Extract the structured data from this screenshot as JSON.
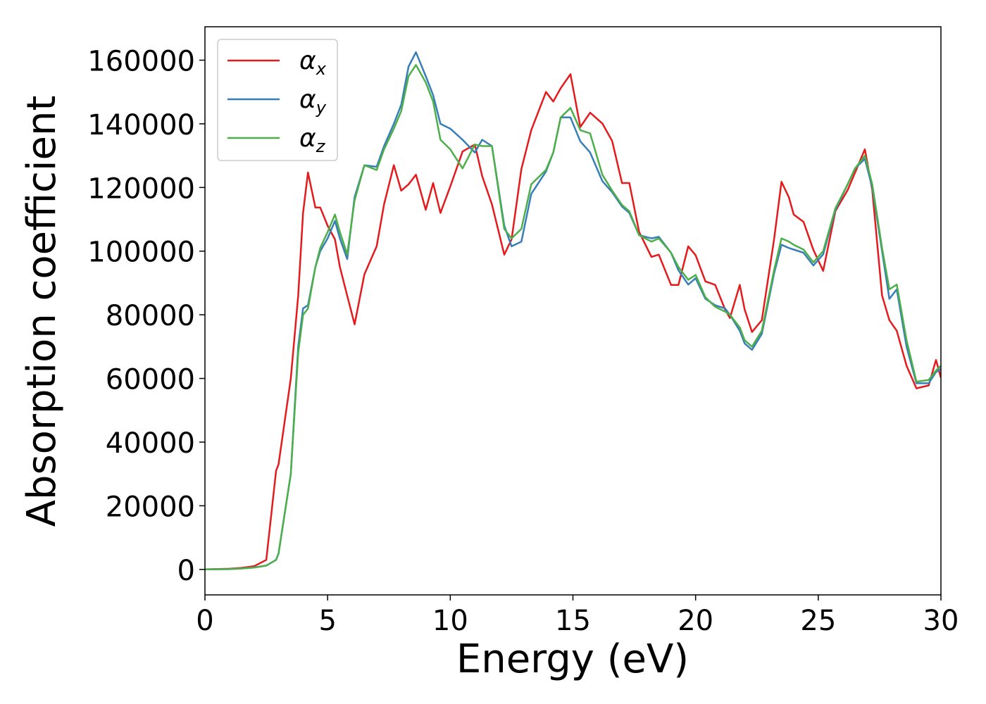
{
  "chart_data": {
    "type": "line",
    "xlabel": "Energy (eV)",
    "ylabel": "Absorption coefficient",
    "x": [
      0,
      1,
      1.5,
      2,
      2.5,
      2.9,
      3,
      3.5,
      3.8,
      4,
      4.2,
      4.5,
      4.7,
      5,
      5.3,
      5.5,
      5.8,
      6.1,
      6.5,
      7,
      7.3,
      7.7,
      8,
      8.3,
      8.6,
      9,
      9.3,
      9.6,
      10,
      10.5,
      11,
      11.3,
      11.7,
      12.2,
      12.5,
      12.9,
      13.3,
      13.9,
      14.2,
      14.5,
      14.9,
      15.3,
      15.7,
      16.2,
      16.6,
      17,
      17.3,
      17.7,
      18.2,
      18.5,
      19,
      19.3,
      19.7,
      20,
      20.4,
      20.8,
      21.2,
      21.4,
      21.8,
      22,
      22.3,
      22.7,
      23.2,
      23.5,
      23.8,
      24,
      24.4,
      24.8,
      25.2,
      25.7,
      26.2,
      26.5,
      26.9,
      27.2,
      27.6,
      27.9,
      28.2,
      28.6,
      29,
      29.5,
      29.8,
      30
    ],
    "series": [
      {
        "name": "αx",
        "color": "#e41a1c",
        "values": [
          0,
          200,
          500,
          1000,
          3000,
          31000,
          33000,
          60000,
          86000,
          112000,
          124700,
          113700,
          113700,
          108000,
          103700,
          95000,
          86000,
          77000,
          92700,
          101500,
          114700,
          127000,
          119000,
          121000,
          124000,
          113000,
          121400,
          112000,
          120300,
          131300,
          133500,
          123600,
          114700,
          98900,
          103700,
          125800,
          138000,
          150000,
          147000,
          151200,
          155600,
          139000,
          143500,
          140100,
          134600,
          121400,
          121400,
          106000,
          98200,
          98900,
          89400,
          89400,
          101500,
          98700,
          90500,
          89400,
          81700,
          79000,
          89400,
          81700,
          74600,
          78300,
          103700,
          121800,
          117000,
          111500,
          109200,
          100400,
          93800,
          112600,
          119200,
          124700,
          132000,
          119200,
          86100,
          78300,
          75000,
          64000,
          56900,
          57800,
          65800,
          60200
        ]
      },
      {
        "name": "αy",
        "color": "#377eb8",
        "values": [
          0,
          100,
          300,
          600,
          1200,
          3000,
          5000,
          30000,
          70000,
          82000,
          83000,
          95000,
          100000,
          104000,
          109500,
          104000,
          97500,
          117000,
          127000,
          126500,
          133000,
          140000,
          146000,
          158000,
          162500,
          155000,
          149000,
          140000,
          138500,
          135000,
          131000,
          135000,
          133000,
          108000,
          101500,
          103000,
          118000,
          125000,
          131000,
          142000,
          142000,
          134500,
          131000,
          122000,
          118500,
          114000,
          112000,
          105000,
          104000,
          104500,
          99500,
          94000,
          89500,
          91500,
          85000,
          83000,
          82000,
          80000,
          75000,
          71000,
          69000,
          74000,
          93000,
          102000,
          101000,
          100500,
          99500,
          95500,
          99000,
          113000,
          121000,
          126000,
          129000,
          120000,
          100000,
          85000,
          88000,
          70000,
          58500,
          58500,
          62000,
          63000
        ]
      },
      {
        "name": "αz",
        "color": "#4daf4a",
        "values": [
          0,
          100,
          300,
          600,
          1200,
          3000,
          5000,
          30000,
          68000,
          80000,
          82000,
          95000,
          101000,
          106000,
          111500,
          106000,
          99000,
          116000,
          127000,
          125500,
          132000,
          138500,
          144000,
          155000,
          158500,
          153000,
          147000,
          135000,
          132000,
          126000,
          133500,
          133000,
          133000,
          107000,
          104000,
          107000,
          121000,
          125500,
          131000,
          142000,
          145000,
          138000,
          137000,
          124000,
          119000,
          114500,
          112500,
          105000,
          103000,
          104000,
          99500,
          95000,
          91000,
          92500,
          85500,
          82500,
          81000,
          80000,
          76000,
          72000,
          70000,
          75000,
          94000,
          104000,
          103000,
          102000,
          100500,
          96500,
          100000,
          113500,
          121000,
          126000,
          130000,
          121000,
          101000,
          88000,
          89500,
          72000,
          59000,
          59500,
          62500,
          64000
        ]
      }
    ],
    "xlim": [
      0,
      30
    ],
    "ylim": [
      -8000,
      170500
    ],
    "xticks": [
      0,
      5,
      10,
      15,
      20,
      25,
      30
    ],
    "yticks": [
      0,
      20000,
      40000,
      60000,
      80000,
      100000,
      120000,
      140000,
      160000
    ],
    "legend": "upper left"
  }
}
